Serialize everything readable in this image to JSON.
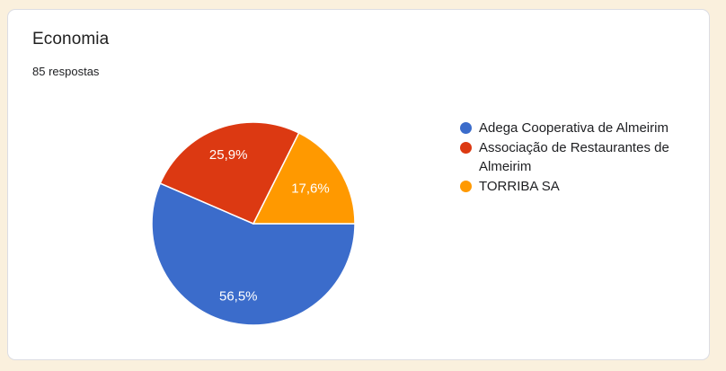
{
  "page": {
    "background_color": "#FAF0DD"
  },
  "card": {
    "title": "Economia",
    "responses_count": "85 respostas"
  },
  "chart_data": {
    "type": "pie",
    "title": "Economia",
    "subtitle": "85 respostas",
    "categories": [
      "Adega Cooperativa de Almeirim",
      "Associação de Restaurantes de Almeirim",
      "TORRIBA SA"
    ],
    "values": [
      56.5,
      25.9,
      17.6
    ],
    "value_labels": [
      "56,5%",
      "25,9%",
      "17,6%"
    ],
    "colors": [
      "#3B6CCB",
      "#DC3912",
      "#FF9900"
    ],
    "label_radius": [
      0.73,
      0.72,
      0.66
    ],
    "start_angle_deg": 0,
    "direction": "clockwise",
    "legend_position": "right",
    "slice_separator_color": "#FFFFFF"
  }
}
